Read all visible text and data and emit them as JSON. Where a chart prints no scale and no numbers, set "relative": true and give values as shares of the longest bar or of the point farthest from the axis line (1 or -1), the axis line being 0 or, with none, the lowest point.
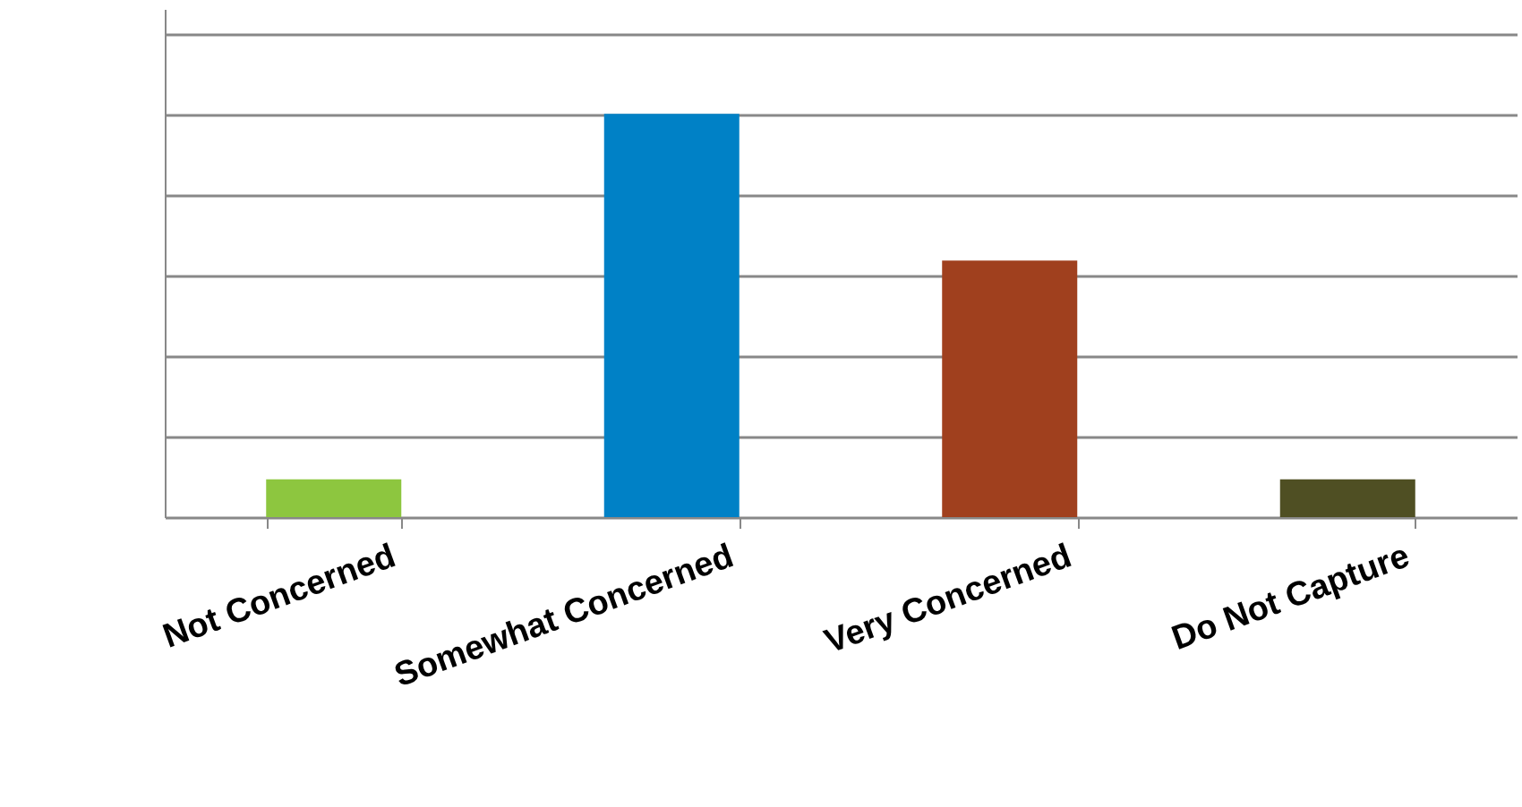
{
  "chart_data": {
    "type": "bar",
    "relative": true,
    "categories": [
      "Not Concerned",
      "Somewhat Concerned",
      "Very Concerned",
      "Do Not Capture"
    ],
    "values": [
      0.094,
      1,
      0.636,
      0.094
    ],
    "colors": [
      "#8dc63f",
      "#0081c6",
      "#a0401e",
      "#4f4f23"
    ],
    "grid": "y"
  }
}
